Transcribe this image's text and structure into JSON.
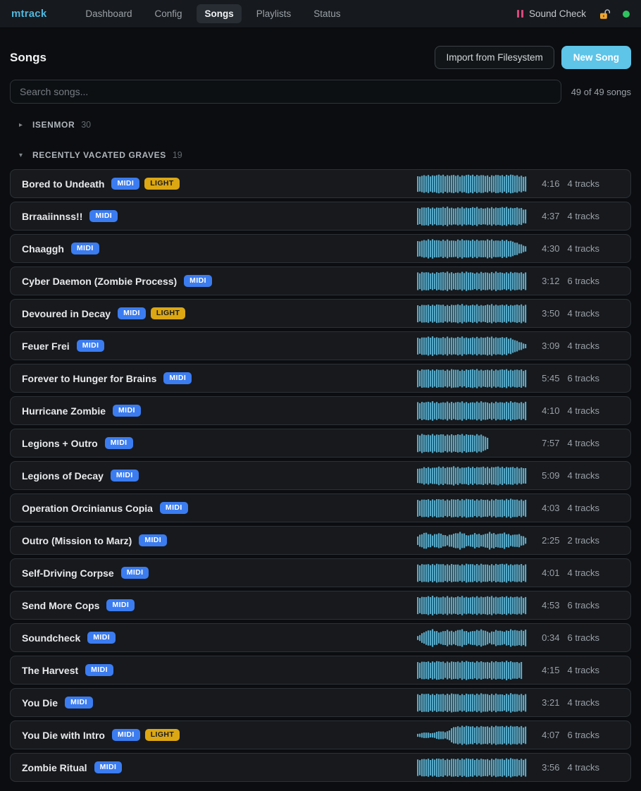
{
  "theme": {
    "accent": "#5ec4e8",
    "waveform_color": "#57a8c6",
    "midi_badge_color": "#3b7cf0",
    "light_badge_color": "#dca713",
    "status_dot_color": "#2fc35f",
    "pause_icon_color": "#d9487a",
    "brand_color": "#4fb8de"
  },
  "nav": {
    "brand": "mtrack",
    "items": [
      {
        "label": "Dashboard",
        "active": false
      },
      {
        "label": "Config",
        "active": false
      },
      {
        "label": "Songs",
        "active": true
      },
      {
        "label": "Playlists",
        "active": false
      },
      {
        "label": "Status",
        "active": false
      }
    ],
    "now_playing": "Sound Check"
  },
  "header": {
    "title": "Songs",
    "import_button": "Import from Filesystem",
    "new_song_button": "New Song"
  },
  "search": {
    "placeholder": "Search songs...",
    "count_label": "49 of 49 songs"
  },
  "groups": [
    {
      "name": "ISENMOR",
      "count": "30",
      "expanded": false,
      "songs": []
    },
    {
      "name": "RECENTLY VACATED GRAVES",
      "count": "19",
      "expanded": true,
      "songs": [
        {
          "title": "Bored to Undeath",
          "badges": [
            "MIDI",
            "LIGHT"
          ],
          "duration": "4:16",
          "tracks": "4 tracks",
          "wave": {
            "w": 0.98,
            "amps": [
              0.8,
              0.95,
              0.88,
              1,
              0.9,
              0.97,
              0.86,
              1,
              0.92,
              0.96,
              0.85,
              0.98,
              0.9,
              1,
              0.88,
              0.8
            ]
          }
        },
        {
          "title": "Brraaiinnss!!",
          "badges": [
            "MIDI"
          ],
          "duration": "4:37",
          "tracks": "4 tracks",
          "wave": {
            "w": 0.98,
            "amps": [
              0.85,
              1,
              0.9,
              0.95,
              1,
              0.88,
              0.97,
              0.9,
              1,
              0.86,
              0.95,
              0.92,
              1,
              0.9,
              0.96,
              0.72
            ]
          }
        },
        {
          "title": "Chaaggh",
          "badges": [
            "MIDI"
          ],
          "duration": "4:30",
          "tracks": "4 tracks",
          "wave": {
            "w": 0.98,
            "amps": [
              0.8,
              0.95,
              1,
              0.9,
              0.97,
              0.88,
              1,
              0.92,
              0.96,
              0.9,
              1,
              0.88,
              0.95,
              0.85,
              0.58,
              0.28
            ]
          }
        },
        {
          "title": "Cyber Daemon (Zombie Process)",
          "badges": [
            "MIDI"
          ],
          "duration": "3:12",
          "tracks": "6 tracks",
          "wave": {
            "w": 0.98,
            "amps": [
              0.9,
              1,
              0.88,
              0.96,
              1,
              0.9,
              0.95,
              1,
              0.88,
              0.97,
              0.92,
              1,
              0.9,
              0.96,
              0.94,
              0.9
            ]
          }
        },
        {
          "title": "Devoured in Decay",
          "badges": [
            "MIDI",
            "LIGHT"
          ],
          "duration": "3:50",
          "tracks": "4 tracks",
          "wave": {
            "w": 0.98,
            "amps": [
              0.86,
              0.97,
              0.9,
              1,
              0.88,
              0.95,
              1,
              0.9,
              0.97,
              0.88,
              1,
              0.92,
              0.96,
              0.9,
              0.98,
              0.92
            ]
          }
        },
        {
          "title": "Feuer Frei",
          "badges": [
            "MIDI"
          ],
          "duration": "3:09",
          "tracks": "4 tracks",
          "wave": {
            "w": 0.98,
            "amps": [
              0.85,
              0.96,
              1,
              0.9,
              0.97,
              0.9,
              1,
              0.88,
              0.95,
              0.92,
              1,
              0.9,
              0.96,
              0.82,
              0.5,
              0.22
            ]
          }
        },
        {
          "title": "Forever to Hunger for Brains",
          "badges": [
            "MIDI"
          ],
          "duration": "5:45",
          "tracks": "6 tracks",
          "wave": {
            "w": 0.98,
            "amps": [
              0.88,
              1,
              0.92,
              0.97,
              0.9,
              1,
              0.88,
              0.96,
              1,
              0.9,
              0.95,
              0.92,
              1,
              0.9,
              0.97,
              0.88
            ]
          }
        },
        {
          "title": "Hurricane Zombie",
          "badges": [
            "MIDI"
          ],
          "duration": "4:10",
          "tracks": "4 tracks",
          "wave": {
            "w": 0.98,
            "amps": [
              0.9,
              0.96,
              1,
              0.88,
              0.97,
              0.92,
              1,
              0.9,
              0.95,
              1,
              0.88,
              0.96,
              0.92,
              1,
              0.9,
              0.94
            ]
          }
        },
        {
          "title": "Legions + Outro",
          "badges": [
            "MIDI"
          ],
          "duration": "7:57",
          "tracks": "4 tracks",
          "wave": {
            "w": 0.65,
            "amps": [
              0.88,
              1,
              0.9,
              0.97,
              0.92,
              1,
              0.88,
              0.96,
              0.9,
              1,
              0.92,
              0.97,
              0.9,
              0.96,
              0.88,
              0.6
            ]
          }
        },
        {
          "title": "Legions of Decay",
          "badges": [
            "MIDI"
          ],
          "duration": "5:09",
          "tracks": "4 tracks",
          "wave": {
            "w": 0.98,
            "amps": [
              0.75,
              0.92,
              0.85,
              0.97,
              0.9,
              1,
              0.86,
              0.95,
              0.9,
              0.97,
              0.88,
              1,
              0.9,
              0.95,
              0.88,
              0.85
            ]
          }
        },
        {
          "title": "Operation Orcinianus Copia",
          "badges": [
            "MIDI"
          ],
          "duration": "4:03",
          "tracks": "4 tracks",
          "wave": {
            "w": 0.98,
            "amps": [
              0.85,
              0.96,
              0.9,
              1,
              0.88,
              0.97,
              0.92,
              1,
              0.9,
              0.95,
              0.88,
              0.97,
              0.92,
              1,
              0.9,
              0.88
            ]
          }
        },
        {
          "title": "Outro (Mission to Marz)",
          "badges": [
            "MIDI"
          ],
          "duration": "2:25",
          "tracks": "2 tracks",
          "wave": {
            "w": 0.98,
            "amps": [
              0.5,
              0.9,
              0.6,
              0.82,
              0.52,
              0.75,
              0.92,
              0.55,
              0.8,
              0.62,
              0.9,
              0.7,
              0.85,
              0.6,
              0.72,
              0.35
            ]
          }
        },
        {
          "title": "Self-Driving Corpse",
          "badges": [
            "MIDI"
          ],
          "duration": "4:01",
          "tracks": "4 tracks",
          "wave": {
            "w": 0.98,
            "amps": [
              0.88,
              0.97,
              0.92,
              1,
              0.9,
              0.96,
              0.88,
              1,
              0.92,
              0.97,
              0.9,
              0.95,
              1,
              0.9,
              0.96,
              0.9
            ]
          }
        },
        {
          "title": "Send More Cops",
          "badges": [
            "MIDI"
          ],
          "duration": "4:53",
          "tracks": "6 tracks",
          "wave": {
            "w": 0.98,
            "amps": [
              0.86,
              0.95,
              1,
              0.9,
              0.97,
              0.9,
              1,
              0.88,
              0.96,
              0.92,
              1,
              0.9,
              0.97,
              0.92,
              0.95,
              0.88
            ]
          }
        },
        {
          "title": "Soundcheck",
          "badges": [
            "MIDI"
          ],
          "duration": "0:34",
          "tracks": "6 tracks",
          "wave": {
            "w": 0.98,
            "amps": [
              0.2,
              0.7,
              0.92,
              0.6,
              0.85,
              0.7,
              0.95,
              0.65,
              0.8,
              0.9,
              0.6,
              0.85,
              0.7,
              0.9,
              0.8,
              0.85
            ]
          }
        },
        {
          "title": "The Harvest",
          "badges": [
            "MIDI"
          ],
          "duration": "4:15",
          "tracks": "4 tracks",
          "wave": {
            "w": 0.95,
            "amps": [
              0.85,
              0.96,
              0.9,
              1,
              0.88,
              0.95,
              0.92,
              1,
              0.9,
              0.97,
              0.88,
              0.96,
              0.92,
              1,
              0.9,
              0.86
            ]
          }
        },
        {
          "title": "You Die",
          "badges": [
            "MIDI"
          ],
          "duration": "3:21",
          "tracks": "4 tracks",
          "wave": {
            "w": 0.98,
            "amps": [
              0.88,
              1,
              0.9,
              0.96,
              0.92,
              1,
              0.88,
              0.97,
              0.92,
              1,
              0.9,
              0.96,
              0.88,
              1,
              0.92,
              0.9
            ]
          }
        },
        {
          "title": "You Die with Intro",
          "badges": [
            "MIDI",
            "LIGHT"
          ],
          "duration": "4:07",
          "tracks": "6 tracks",
          "wave": {
            "w": 0.98,
            "amps": [
              0.15,
              0.32,
              0.22,
              0.45,
              0.35,
              0.9,
              0.96,
              1,
              0.9,
              0.97,
              0.92,
              1,
              0.95,
              0.98,
              0.96,
              0.9
            ]
          }
        },
        {
          "title": "Zombie Ritual",
          "badges": [
            "MIDI"
          ],
          "duration": "3:56",
          "tracks": "4 tracks",
          "wave": {
            "w": 0.98,
            "amps": [
              0.84,
              0.96,
              0.9,
              1,
              0.88,
              0.97,
              0.92,
              1,
              0.9,
              0.95,
              0.88,
              0.98,
              0.92,
              1,
              0.9,
              0.92
            ]
          }
        }
      ]
    }
  ]
}
